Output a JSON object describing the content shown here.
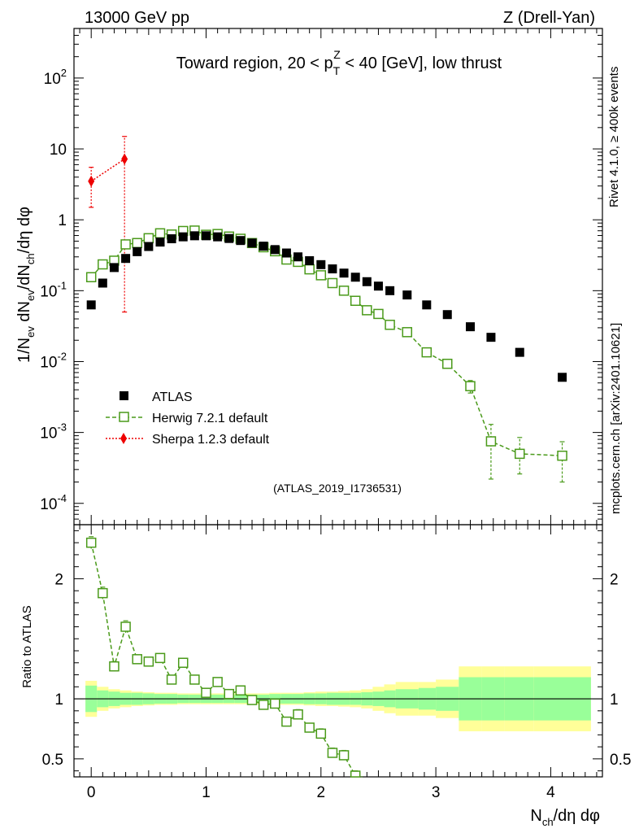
{
  "header": {
    "left": "13000 GeV pp",
    "right": "Z (Drell-Yan)"
  },
  "side": {
    "rivet": "Rivet 4.1.0, ≥ 400k events",
    "mcplots": "mcplots.cern.ch [arXiv:2401.10621]"
  },
  "colors": {
    "atlas": "#000000",
    "herwig": "#4a9a1a",
    "sherpa": "#ee0000",
    "band_inner": "#99ff99",
    "band_outer": "#ffff99",
    "watermark": "#999999"
  },
  "chart_data": {
    "type": "scatter",
    "title": "Toward region, 20 < p_T^Z < 40 [GeV], low thrust",
    "analysis_id": "(ATLAS_2019_I1736531)",
    "xlabel": "N_ch/dη dφ",
    "ylabel": "1/N_ev dN_ev/dN_ch/dη dφ",
    "ratio_ylabel": "Ratio to ATLAS",
    "xlim": [
      -0.15,
      4.45
    ],
    "ylim": [
      5e-05,
      500
    ],
    "yscale": "log",
    "ratio_ylim": [
      0.35,
      2.45
    ],
    "x_ticks": [
      "0",
      "1",
      "2",
      "3",
      "4"
    ],
    "x_tick_values": [
      0,
      1,
      2,
      3,
      4
    ],
    "y_tick_labels": [
      "10^-4",
      "10^-3",
      "10^-2",
      "10^-1",
      "1",
      "10",
      "10^2"
    ],
    "y_tick_values": [
      0.0001,
      0.001,
      0.01,
      0.1,
      1,
      10,
      100
    ],
    "ratio_ticks": [
      "0.5",
      "1",
      "2"
    ],
    "ratio_tick_values": [
      0.5,
      1,
      2
    ],
    "legend_position": "lower-left",
    "series": [
      {
        "name": "ATLAS",
        "marker": "filled-square",
        "x": [
          0.0,
          0.1,
          0.2,
          0.3,
          0.4,
          0.5,
          0.6,
          0.7,
          0.8,
          0.9,
          1.0,
          1.1,
          1.2,
          1.3,
          1.4,
          1.5,
          1.6,
          1.7,
          1.8,
          1.9,
          2.0,
          2.1,
          2.2,
          2.3,
          2.4,
          2.5,
          2.6,
          2.75,
          2.92,
          3.1,
          3.3,
          3.48,
          3.73,
          4.1
        ],
        "values": [
          0.063,
          0.128,
          0.212,
          0.285,
          0.355,
          0.42,
          0.485,
          0.54,
          0.575,
          0.595,
          0.595,
          0.575,
          0.545,
          0.51,
          0.47,
          0.425,
          0.38,
          0.34,
          0.3,
          0.265,
          0.233,
          0.203,
          0.177,
          0.155,
          0.134,
          0.116,
          0.1,
          0.087,
          0.063,
          0.046,
          0.031,
          0.022,
          0.0135,
          0.006
        ]
      },
      {
        "name": "Herwig 7.2.1 default",
        "marker": "open-square",
        "line": "dashed",
        "x": [
          0.0,
          0.1,
          0.2,
          0.3,
          0.4,
          0.5,
          0.6,
          0.7,
          0.8,
          0.9,
          1.0,
          1.1,
          1.2,
          1.3,
          1.4,
          1.5,
          1.6,
          1.7,
          1.8,
          1.9,
          2.0,
          2.1,
          2.2,
          2.3,
          2.4,
          2.5,
          2.6,
          2.75,
          2.92,
          3.1,
          3.3,
          3.48,
          3.73,
          4.1
        ],
        "values": [
          0.155,
          0.235,
          0.265,
          0.45,
          0.47,
          0.55,
          0.645,
          0.62,
          0.695,
          0.705,
          0.615,
          0.63,
          0.58,
          0.54,
          0.47,
          0.41,
          0.36,
          0.275,
          0.255,
          0.2,
          0.165,
          0.128,
          0.1,
          0.072,
          0.053,
          0.047,
          0.033,
          0.026,
          0.0135,
          0.0093,
          0.0045,
          0.00075,
          0.0005,
          0.00047
        ],
        "yerr_low": [
          0.005,
          0.005,
          0.005,
          0.01,
          0.01,
          0.01,
          0.01,
          0.01,
          0.01,
          0.01,
          0.01,
          0.01,
          0.01,
          0.01,
          0.01,
          0.01,
          0.01,
          0.01,
          0.01,
          0.01,
          0.005,
          0.005,
          0.005,
          0.004,
          0.003,
          0.003,
          0.002,
          0.002,
          0.0015,
          0.0012,
          0.0009,
          0.00053,
          0.00024,
          0.00027
        ],
        "yerr_high": [
          0.005,
          0.005,
          0.005,
          0.01,
          0.01,
          0.01,
          0.01,
          0.01,
          0.01,
          0.01,
          0.01,
          0.01,
          0.01,
          0.01,
          0.01,
          0.01,
          0.01,
          0.01,
          0.01,
          0.01,
          0.005,
          0.005,
          0.005,
          0.004,
          0.003,
          0.003,
          0.002,
          0.002,
          0.0015,
          0.0012,
          0.0009,
          0.00055,
          0.00035,
          0.00027
        ]
      },
      {
        "name": "Sherpa 1.2.3 default",
        "marker": "filled-diamond",
        "line": "dotted",
        "x": [
          0.0,
          0.29
        ],
        "values": [
          3.5,
          7.2
        ],
        "yerr_low": [
          2.0,
          7.15
        ],
        "yerr_high": [
          2.0,
          7.8
        ]
      }
    ],
    "ratio": {
      "x": [
        0.0,
        0.1,
        0.2,
        0.3,
        0.4,
        0.5,
        0.6,
        0.7,
        0.8,
        0.9,
        1.0,
        1.1,
        1.2,
        1.3,
        1.4,
        1.5,
        1.6,
        1.7,
        1.8,
        1.9,
        2.0,
        2.1,
        2.2,
        2.3
      ],
      "herwig": [
        2.3,
        1.88,
        1.27,
        1.6,
        1.33,
        1.31,
        1.34,
        1.16,
        1.3,
        1.16,
        1.05,
        1.14,
        1.04,
        1.07,
        0.99,
        0.95,
        0.96,
        0.81,
        0.87,
        0.76,
        0.71,
        0.55,
        0.53,
        0.36
      ],
      "herwig_err": [
        0.05,
        0.05,
        0.04,
        0.05,
        0.03,
        0.03,
        0.03,
        0.03,
        0.03,
        0.03,
        0.02,
        0.02,
        0.02,
        0.02,
        0.02,
        0.02,
        0.02,
        0.03,
        0.04,
        0.03,
        0.04,
        0.04,
        0.04,
        0.04
      ],
      "band_edges": [
        -0.05,
        0.05,
        0.15,
        0.25,
        0.35,
        0.45,
        0.55,
        0.65,
        0.75,
        0.85,
        0.95,
        1.05,
        1.15,
        1.25,
        1.35,
        1.45,
        1.55,
        1.65,
        1.75,
        1.85,
        1.95,
        2.05,
        2.15,
        2.25,
        2.35,
        2.45,
        2.55,
        2.65,
        2.85,
        3.0,
        3.2,
        3.4,
        3.6,
        3.85,
        4.35
      ],
      "band_inner": [
        0.11,
        0.07,
        0.06,
        0.05,
        0.05,
        0.045,
        0.04,
        0.04,
        0.035,
        0.035,
        0.035,
        0.035,
        0.035,
        0.035,
        0.035,
        0.035,
        0.04,
        0.04,
        0.04,
        0.045,
        0.045,
        0.05,
        0.05,
        0.05,
        0.055,
        0.06,
        0.07,
        0.08,
        0.09,
        0.1,
        0.18,
        0.18,
        0.18,
        0.18
      ],
      "band_outer": [
        0.15,
        0.1,
        0.08,
        0.07,
        0.06,
        0.055,
        0.05,
        0.05,
        0.045,
        0.045,
        0.045,
        0.045,
        0.045,
        0.045,
        0.045,
        0.045,
        0.05,
        0.05,
        0.05,
        0.055,
        0.06,
        0.06,
        0.065,
        0.07,
        0.08,
        0.1,
        0.12,
        0.14,
        0.14,
        0.16,
        0.27,
        0.27,
        0.27,
        0.27
      ]
    }
  }
}
